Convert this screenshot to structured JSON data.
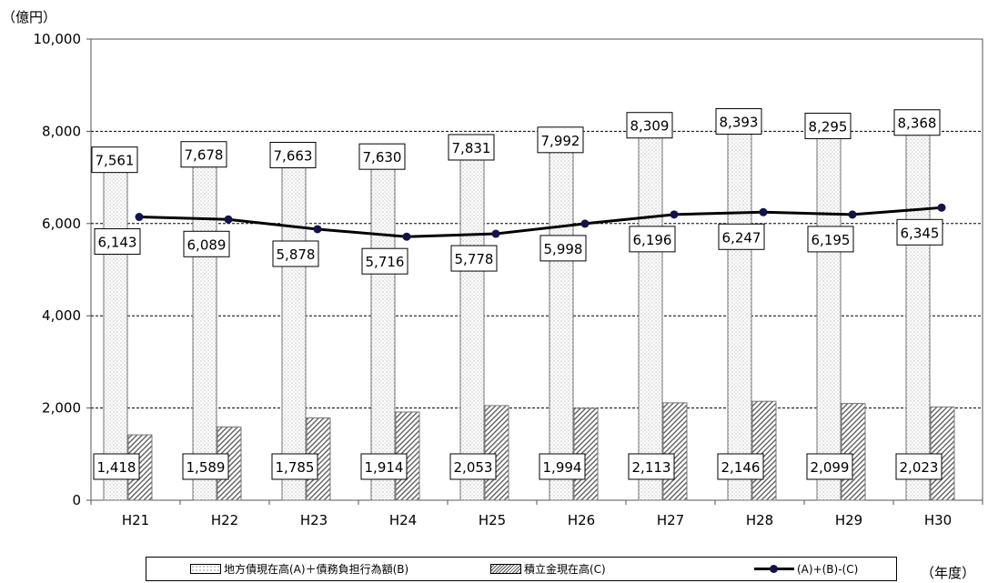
{
  "y_unit_label": "（億円）",
  "x_unit_label": "（年度）",
  "chart_data": {
    "type": "bar",
    "categories": [
      "H21",
      "H22",
      "H23",
      "H24",
      "H25",
      "H26",
      "H27",
      "H28",
      "H29",
      "H30"
    ],
    "series": [
      {
        "name": "地方債現在高(A)＋債務負担行為額(B)",
        "type": "bar",
        "pattern": "dots",
        "values": [
          7561,
          7678,
          7663,
          7630,
          7831,
          7992,
          8309,
          8393,
          8295,
          8368
        ]
      },
      {
        "name": "積立金現在高(C)",
        "type": "bar",
        "pattern": "hatch",
        "values": [
          1418,
          1589,
          1785,
          1914,
          2053,
          1994,
          2113,
          2146,
          2099,
          2023
        ]
      },
      {
        "name": "(A)+(B)-(C)",
        "type": "line",
        "color": "#000000",
        "marker_color": "#13134a",
        "values": [
          6143,
          6089,
          5878,
          5716,
          5778,
          5998,
          6196,
          6247,
          6195,
          6345
        ]
      }
    ],
    "data_labels": {
      "debt": [
        "7,561",
        "7,678",
        "7,663",
        "7,630",
        "7,831",
        "7,992",
        "8,309",
        "8,393",
        "8,295",
        "8,368"
      ],
      "reserve": [
        "1,418",
        "1,589",
        "1,785",
        "1,914",
        "2,053",
        "1,994",
        "2,113",
        "2,146",
        "2,099",
        "2,023"
      ],
      "net": [
        "6,143",
        "6,089",
        "5,878",
        "5,716",
        "5,778",
        "5,998",
        "6,196",
        "6,247",
        "6,195",
        "6,345"
      ]
    },
    "ylim": [
      0,
      10000
    ],
    "yticks": [
      0,
      2000,
      4000,
      6000,
      8000,
      10000
    ],
    "ytick_labels": [
      "0",
      "2,000",
      "4,000",
      "6,000",
      "8,000",
      "10,000"
    ],
    "grid": "horizontal dashed",
    "legend_position": "bottom"
  }
}
